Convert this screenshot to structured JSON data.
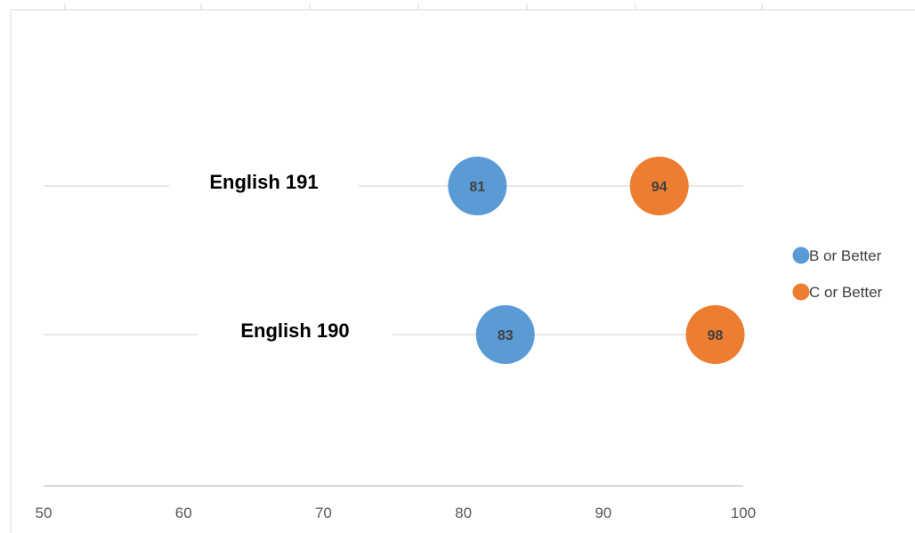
{
  "chart_data": {
    "type": "scatter",
    "xlim": [
      50,
      100
    ],
    "x_ticks": [
      50,
      60,
      70,
      80,
      90,
      100
    ],
    "categories": [
      "English 191",
      "English 190"
    ],
    "series": [
      {
        "name": "B or Better",
        "color": "#5b9bd5",
        "values": [
          81,
          83
        ]
      },
      {
        "name": "C or Better",
        "color": "#ed7d31",
        "values": [
          94,
          98
        ]
      }
    ],
    "grid": true,
    "legend_position": "right"
  }
}
